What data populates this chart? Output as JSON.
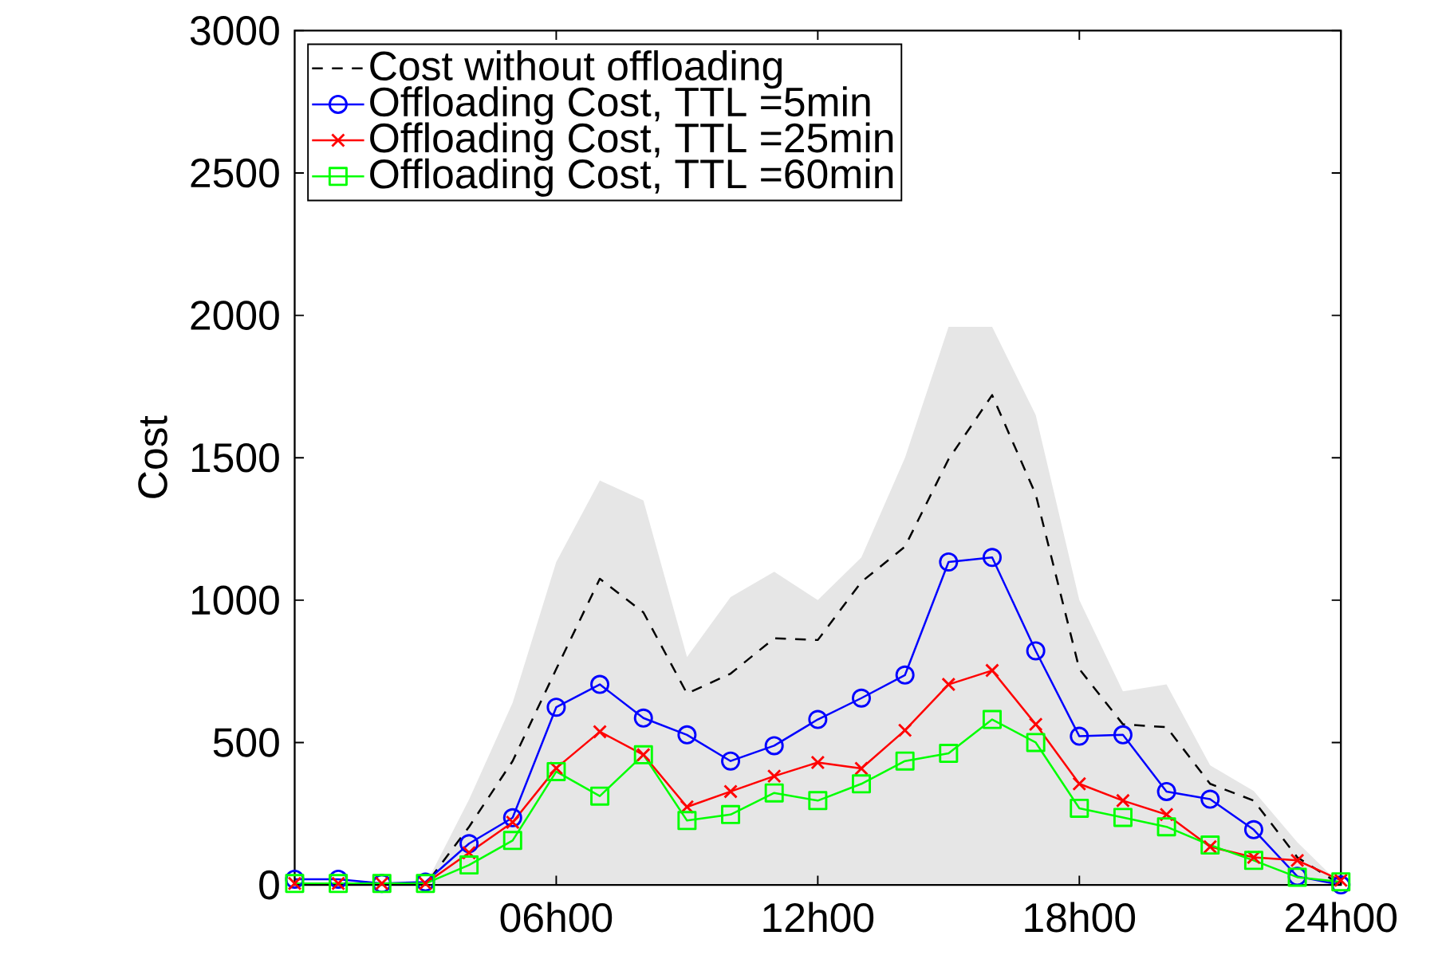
{
  "chart_data": {
    "type": "line",
    "ylabel": "Cost",
    "categories": [
      null,
      null,
      null,
      null,
      null,
      null,
      "06h00",
      null,
      null,
      null,
      null,
      null,
      "12h00",
      null,
      null,
      null,
      null,
      null,
      "18h00",
      null,
      null,
      null,
      null,
      null,
      "24h00"
    ],
    "ylim": [
      0,
      3000
    ],
    "yticks": [
      0,
      500,
      1000,
      1500,
      2000,
      2500,
      3000
    ],
    "legend": "top left",
    "series": [
      {
        "type": "area",
        "color": "#e6e6e6",
        "values": [
          0,
          0,
          0,
          0,
          300,
          640,
          1134,
          1420,
          1350,
          800,
          1011,
          1100,
          1000,
          1150,
          1500,
          1960,
          1960,
          1650,
          1000,
          680,
          704,
          420,
          330,
          150,
          0
        ]
      },
      {
        "name": "Cost without offloading",
        "color": "#000000",
        "line_style": "dashed",
        "marker": "none",
        "values": [
          0,
          0,
          0,
          0,
          204,
          435,
          758,
          1075,
          957,
          672,
          742,
          866,
          860,
          1064,
          1188,
          1495,
          1720,
          1371,
          758,
          564,
          554,
          355,
          296,
          97,
          0
        ]
      },
      {
        "name": "Offloading Cost, TTL =5min",
        "color": "#0000ff",
        "line_style": "solid",
        "marker": "circle",
        "values": [
          20,
          20,
          5,
          10,
          145,
          236,
          624,
          704,
          586,
          527,
          435,
          489,
          581,
          656,
          737,
          1134,
          1150,
          822,
          522,
          527,
          328,
          301,
          194,
          30,
          0
        ]
      },
      {
        "name": "Offloading Cost, TTL =25min",
        "color": "#ff0000",
        "line_style": "solid",
        "marker": "cross",
        "values": [
          5,
          5,
          5,
          5,
          113,
          220,
          410,
          538,
          457,
          274,
          328,
          382,
          430,
          409,
          543,
          704,
          753,
          564,
          355,
          296,
          247,
          134,
          97,
          86,
          16
        ]
      },
      {
        "name": "Offloading Cost, TTL =60min",
        "color": "#00ff00",
        "line_style": "solid",
        "marker": "square",
        "values": [
          5,
          5,
          5,
          5,
          70,
          156,
          398,
          312,
          457,
          226,
          247,
          323,
          296,
          355,
          435,
          462,
          581,
          500,
          269,
          237,
          204,
          140,
          86,
          27,
          11
        ]
      }
    ]
  }
}
